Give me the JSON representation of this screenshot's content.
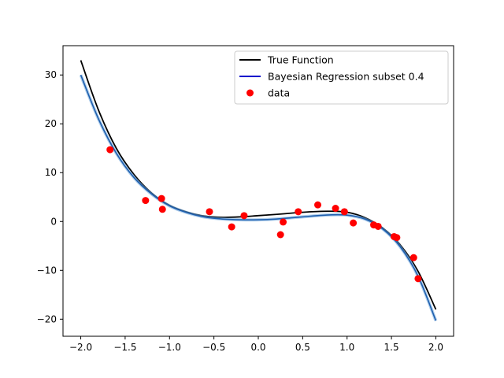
{
  "chart_data": {
    "type": "line",
    "title": "",
    "xlabel": "",
    "ylabel": "",
    "xlim": [
      -2.2,
      2.2
    ],
    "ylim": [
      -23.5,
      36.0
    ],
    "grid": false,
    "legend_placement": "top-right",
    "x_ticks": [
      -2.0,
      -1.5,
      -1.0,
      -0.5,
      0.0,
      0.5,
      1.0,
      1.5,
      2.0
    ],
    "x_tick_labels": [
      "−2.0",
      "−1.5",
      "−1.0",
      "−0.5",
      "0.0",
      "0.5",
      "1.0",
      "1.5",
      "2.0"
    ],
    "y_ticks": [
      -20,
      -10,
      0,
      10,
      20,
      30
    ],
    "y_tick_labels": [
      "−20",
      "−10",
      "0",
      "10",
      "20",
      "30"
    ],
    "series": [
      {
        "name": "True Function",
        "kind": "line",
        "color": "#000000",
        "x": [
          -2.0,
          -1.8,
          -1.6,
          -1.4,
          -1.2,
          -1.0,
          -0.8,
          -0.6,
          -0.4,
          -0.2,
          0.0,
          0.2,
          0.4,
          0.6,
          0.8,
          1.0,
          1.2,
          1.4,
          1.6,
          1.8,
          2.0
        ],
        "y": [
          33.0,
          22.8,
          15.0,
          9.6,
          5.8,
          3.3,
          1.9,
          1.1,
          0.85,
          0.95,
          1.2,
          1.45,
          1.75,
          2.0,
          2.1,
          1.9,
          0.8,
          -1.3,
          -4.8,
          -10.2,
          -18.0
        ]
      },
      {
        "name": "Bayesian Regression subset 0.4",
        "kind": "line",
        "color": "#0000cc",
        "x": [
          -2.0,
          -1.8,
          -1.6,
          -1.4,
          -1.2,
          -1.0,
          -0.8,
          -0.6,
          -0.4,
          -0.2,
          0.0,
          0.2,
          0.4,
          0.6,
          0.8,
          1.0,
          1.2,
          1.4,
          1.6,
          1.8,
          2.0
        ],
        "y": [
          30.0,
          21.0,
          14.0,
          9.0,
          5.6,
          3.2,
          1.8,
          0.9,
          0.5,
          0.35,
          0.35,
          0.5,
          0.8,
          1.1,
          1.35,
          1.3,
          0.5,
          -1.5,
          -5.2,
          -11.2,
          -20.3
        ]
      },
      {
        "name": "data",
        "kind": "scatter",
        "color": "#ff0000",
        "x": [
          -1.67,
          -1.27,
          -1.09,
          -1.08,
          -0.55,
          -0.3,
          -0.16,
          0.25,
          0.28,
          0.45,
          0.67,
          0.87,
          0.97,
          1.07,
          1.3,
          1.35,
          1.53,
          1.56,
          1.75,
          1.8
        ],
        "y": [
          14.7,
          4.3,
          4.7,
          2.5,
          2.0,
          -1.1,
          1.2,
          -2.7,
          -0.1,
          2.0,
          3.4,
          2.7,
          2.0,
          -0.3,
          -0.7,
          -1.0,
          -3.1,
          -3.3,
          -7.4,
          -11.7
        ]
      }
    ],
    "legend": [
      {
        "label": "True Function",
        "symbol": "line",
        "color": "#000000"
      },
      {
        "label": "Bayesian Regression subset 0.4",
        "symbol": "line",
        "color": "#0000cc"
      },
      {
        "label": "data",
        "symbol": "dot",
        "color": "#ff0000"
      }
    ]
  }
}
